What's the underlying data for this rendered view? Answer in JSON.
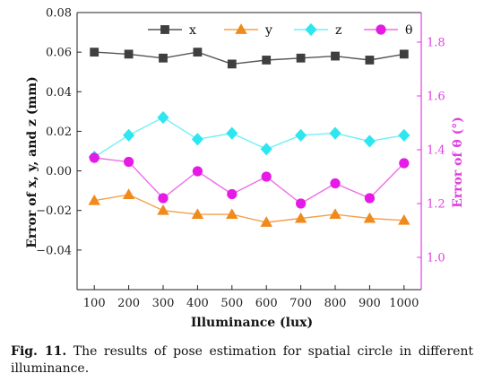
{
  "chart_data": {
    "type": "line",
    "x": [
      100,
      200,
      300,
      400,
      500,
      600,
      700,
      800,
      900,
      1000
    ],
    "x_tick_labels": [
      "100",
      "200",
      "300",
      "400",
      "500",
      "600",
      "700",
      "800",
      "900",
      "1000"
    ],
    "xlabel": "Illuminance (lux)",
    "ylabel_left": "Error of x, y, and z (mm)",
    "ylabel_right": "Error of θ (°)",
    "ylim_left": [
      -0.06,
      0.08
    ],
    "ylim_right": [
      0.88,
      1.91
    ],
    "left_tick_values": [
      -0.04,
      -0.02,
      0.0,
      0.02,
      0.04,
      0.06,
      0.08
    ],
    "left_tick_labels": [
      "−0.04",
      "−0.02",
      "0.00",
      "0.02",
      "0.04",
      "0.06",
      "0.08"
    ],
    "right_tick_values": [
      1.0,
      1.2,
      1.4,
      1.6,
      1.8
    ],
    "right_tick_labels": [
      "1.0",
      "1.2",
      "1.4",
      "1.6",
      "1.8"
    ],
    "right_axis_color": "#e040e0",
    "grid": false,
    "legend_position": "top",
    "series": [
      {
        "name": "x",
        "axis": "left",
        "marker": "square",
        "color": "#3f3f3f",
        "line_color": "#555555",
        "values": [
          0.06,
          0.059,
          0.057,
          0.06,
          0.054,
          0.056,
          0.057,
          0.058,
          0.056,
          0.059
        ]
      },
      {
        "name": "y",
        "axis": "left",
        "marker": "triangle",
        "color": "#f08a1c",
        "line_color": "#f5a04a",
        "values": [
          -0.015,
          -0.012,
          -0.02,
          -0.022,
          -0.022,
          -0.026,
          -0.024,
          -0.022,
          -0.024,
          -0.025
        ]
      },
      {
        "name": "z",
        "axis": "left",
        "marker": "diamond",
        "color": "#2ce6f0",
        "line_color": "#6ef0f5",
        "values": [
          0.007,
          0.018,
          0.027,
          0.016,
          0.019,
          0.011,
          0.018,
          0.019,
          0.015,
          0.018
        ]
      },
      {
        "name": "θ",
        "axis": "right",
        "marker": "circle",
        "color": "#e61ae6",
        "line_color": "#ee6ee6",
        "values": [
          1.37,
          1.355,
          1.22,
          1.32,
          1.235,
          1.3,
          1.2,
          1.275,
          1.22,
          1.35
        ]
      }
    ]
  },
  "caption": {
    "label": "Fig. 11.",
    "text": "The results of pose estimation for spatial circle in different illuminance."
  }
}
